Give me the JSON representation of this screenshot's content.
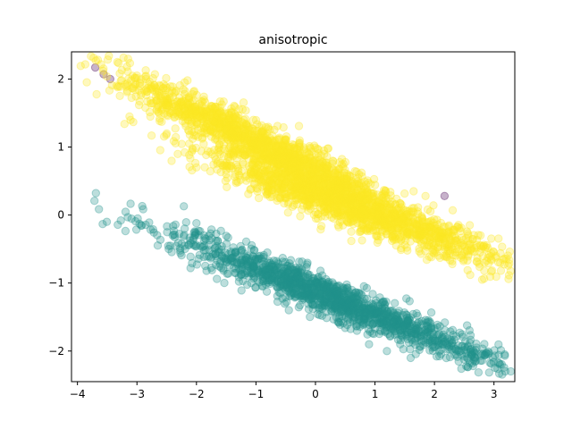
{
  "chart_data": {
    "type": "scatter",
    "title": "anisotropic",
    "xlabel": "",
    "ylabel": "",
    "xlim": [
      -4.1,
      3.35
    ],
    "ylim": [
      -2.45,
      2.4
    ],
    "xticks": [
      -4,
      -3,
      -2,
      -1,
      0,
      1,
      2,
      3
    ],
    "yticks": [
      -2,
      -1,
      0,
      1,
      2
    ],
    "xtick_labels": [
      "−4",
      "−3",
      "−2",
      "−1",
      "0",
      "1",
      "2",
      "3"
    ],
    "ytick_labels": [
      "−2",
      "−1",
      "0",
      "1",
      "2"
    ],
    "grid": false,
    "legend": "none",
    "marker_alpha": 0.3,
    "series": [
      {
        "color": "#440154",
        "points": [
          [
            -3.7,
            2.17
          ],
          [
            -3.56,
            2.07
          ],
          [
            -3.45,
            2.0
          ],
          [
            2.17,
            0.28
          ]
        ]
      },
      {
        "color": "#21918c",
        "distribution": {
          "count": 1500,
          "start": [
            -2.1,
            -0.4
          ],
          "end": [
            2.7,
            -2.05
          ],
          "spread_along": 0.28,
          "spread_across": 0.13
        },
        "points": [
          [
            -2.4,
            -0.3
          ],
          [
            -2.0,
            -0.12
          ],
          [
            -2.1,
            -0.78
          ],
          [
            2.9,
            -2.05
          ],
          [
            2.65,
            -2.22
          ],
          [
            2.55,
            -2.1
          ],
          [
            2.4,
            -1.92
          ],
          [
            1.6,
            -2.1
          ],
          [
            1.2,
            -2.0
          ],
          [
            0.9,
            -1.9
          ]
        ]
      },
      {
        "color": "#fde725",
        "distribution": {
          "count": 3000,
          "clusters": [
            {
              "count": 1500,
              "start": [
                -3.0,
                1.9
              ],
              "end": [
                1.2,
                0.15
              ],
              "spread_along": 0.28,
              "spread_across": 0.14
            },
            {
              "count": 1500,
              "start": [
                -1.6,
                0.8
              ],
              "end": [
                2.9,
                -0.6
              ],
              "spread_along": 0.28,
              "spread_across": 0.14
            }
          ]
        },
        "points": [
          [
            -3.2,
            1.92
          ],
          [
            -3.0,
            2.05
          ],
          [
            -2.85,
            2.0
          ],
          [
            -2.2,
            1.95
          ],
          [
            -2.5,
            1.2
          ],
          [
            2.95,
            -0.65
          ],
          [
            2.6,
            -0.88
          ],
          [
            2.8,
            -0.95
          ],
          [
            2.3,
            -0.72
          ],
          [
            1.65,
            0.35
          ],
          [
            1.85,
            0.28
          ],
          [
            -2.0,
            0.7
          ],
          [
            -1.5,
            0.6
          ],
          [
            -2.15,
            1.98
          ]
        ]
      }
    ]
  }
}
